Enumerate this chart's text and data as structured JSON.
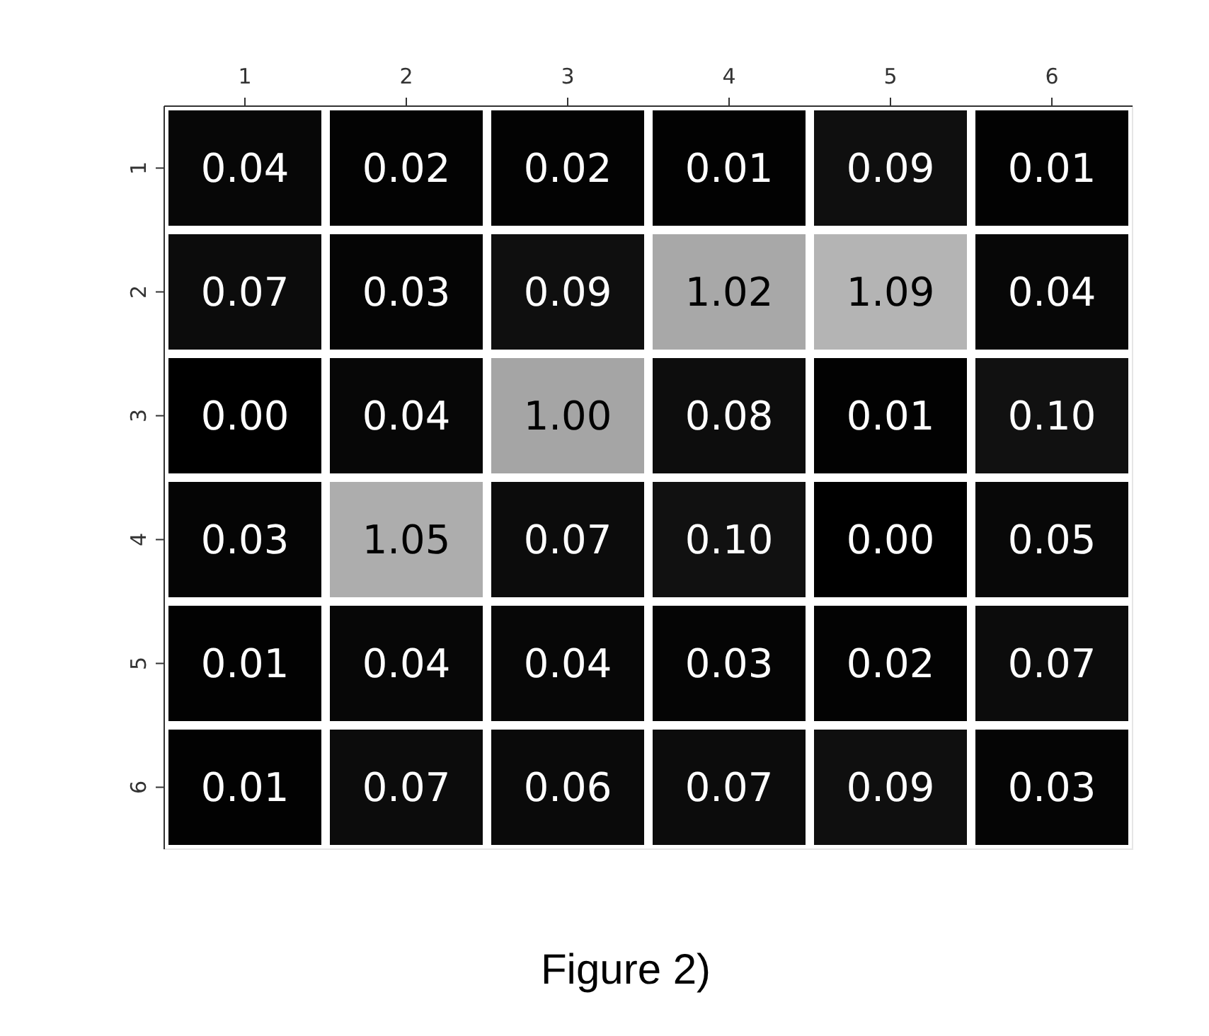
{
  "chart_data": {
    "type": "heatmap",
    "categories": [
      "1",
      "2",
      "3",
      "4",
      "5",
      "6"
    ],
    "y_categories": [
      "1",
      "2",
      "3",
      "4",
      "5",
      "6"
    ],
    "cells": [
      [
        0.04,
        0.02,
        0.02,
        0.01,
        0.09,
        0.01
      ],
      [
        0.07,
        0.03,
        0.09,
        1.02,
        1.09,
        0.04
      ],
      [
        0.0,
        0.04,
        1.0,
        0.08,
        0.01,
        0.1
      ],
      [
        0.03,
        1.05,
        0.07,
        0.1,
        0.0,
        0.05
      ],
      [
        0.01,
        0.04,
        0.04,
        0.03,
        0.02,
        0.07
      ],
      [
        0.01,
        0.07,
        0.06,
        0.07,
        0.09,
        0.03
      ]
    ],
    "cell_labels": [
      [
        "0.04",
        "0.02",
        "0.02",
        "0.01",
        "0.09",
        "0.01"
      ],
      [
        "0.07",
        "0.03",
        "0.09",
        "1.02",
        "1.09",
        "0.04"
      ],
      [
        "0.00",
        "0.04",
        "1.00",
        "0.08",
        "0.01",
        "0.10"
      ],
      [
        "0.03",
        "1.05",
        "0.07",
        "0.10",
        "0.00",
        "0.05"
      ],
      [
        "0.01",
        "0.04",
        "0.04",
        "0.03",
        "0.02",
        "0.07"
      ],
      [
        "0.01",
        "0.07",
        "0.06",
        "0.07",
        "0.09",
        "0.03"
      ]
    ],
    "annotations": [
      "Figure 2)"
    ]
  }
}
